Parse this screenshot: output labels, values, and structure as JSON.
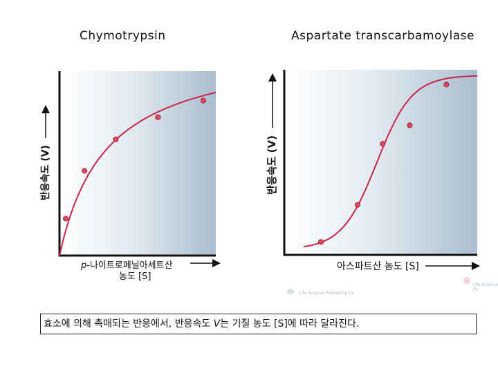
{
  "chart_data": [
    {
      "type": "line",
      "title": "Chymotrypsin",
      "xlabel_prefix": "p",
      "xlabel_line1": "-나이트로페닐아세트산",
      "xlabel_line2": "농도 [S]",
      "ylabel": "반응속도 (V)",
      "curve": "hyperbolic",
      "series": [
        {
          "points": [
            [
              0.04,
              0.2
            ],
            [
              0.16,
              0.46
            ],
            [
              0.36,
              0.63
            ],
            [
              0.63,
              0.75
            ],
            [
              0.92,
              0.84
            ]
          ]
        }
      ],
      "xlim": [
        0,
        1
      ],
      "ylim": [
        0,
        1
      ],
      "grid": false
    },
    {
      "type": "line",
      "title": "Aspartate transcarbamoylase",
      "xlabel": "아스파트산 농도 [S]",
      "ylabel": "반응속도 (V)",
      "curve": "sigmoidal",
      "series": [
        {
          "points": [
            [
              0.19,
              0.07
            ],
            [
              0.38,
              0.27
            ],
            [
              0.51,
              0.6
            ],
            [
              0.65,
              0.7
            ],
            [
              0.84,
              0.92
            ]
          ]
        }
      ],
      "xlim": [
        0,
        1
      ],
      "ylim": [
        0,
        1
      ],
      "grid": false
    }
  ],
  "caption": {
    "part1": "효소에 의해 촉매되는 반응에서, 반응속도 ",
    "v": "V",
    "part2": "는 기질 농도 [S]에 따라 달라진다."
  },
  "watermarks": [
    "Life Science Publishing Co.",
    "Life Science Pu"
  ],
  "colors": {
    "curve": "#c8244a",
    "point": "#e0485e",
    "panel_left": "#ffffff",
    "panel_right": "#a9bece",
    "axis": "#111111"
  }
}
